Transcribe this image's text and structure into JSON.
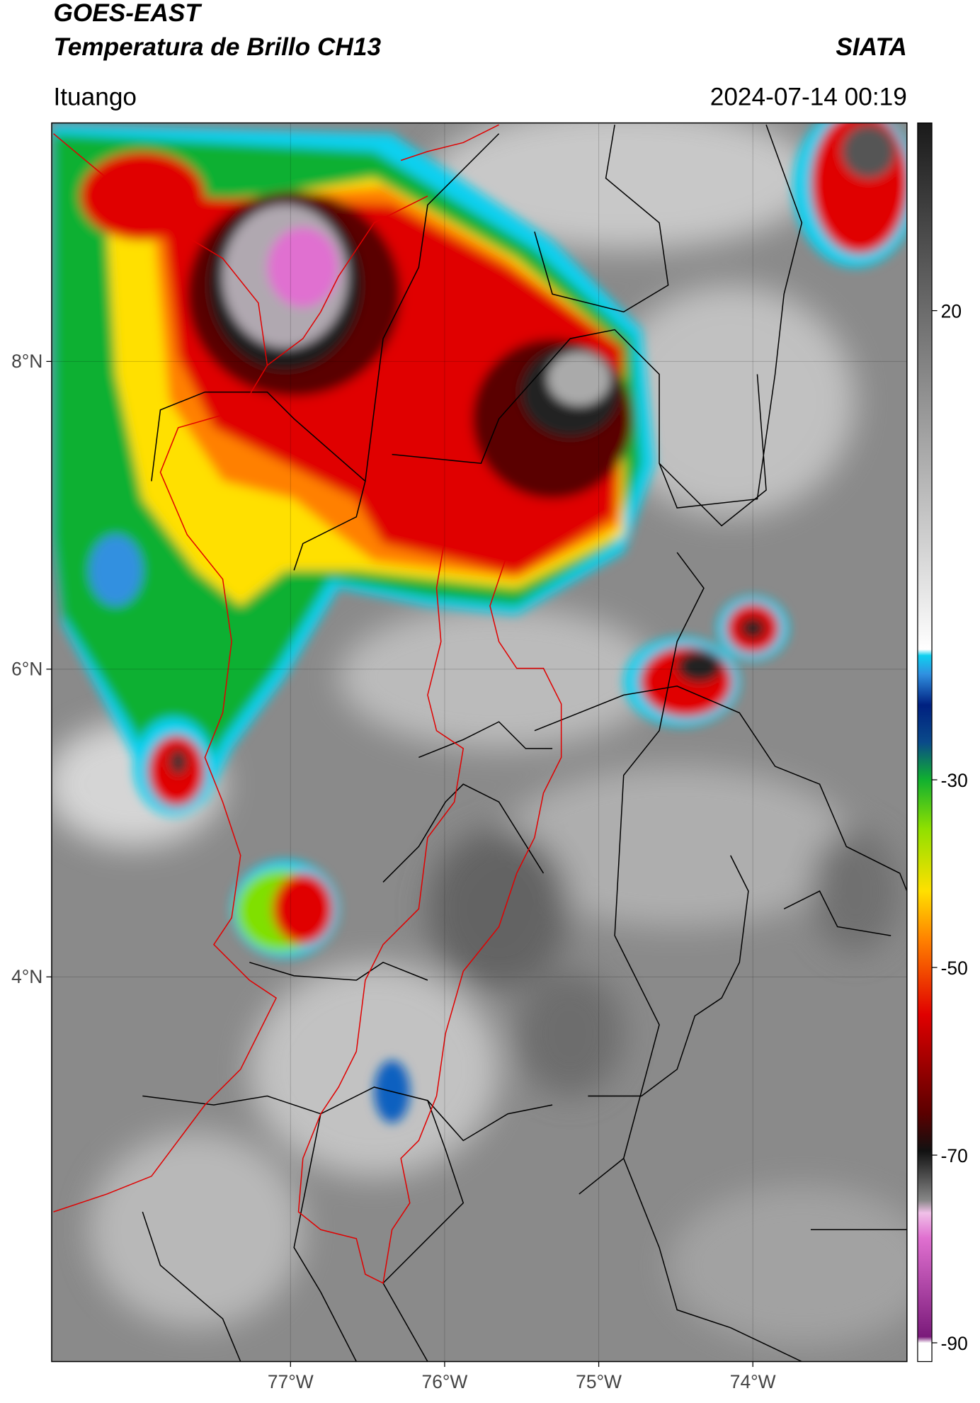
{
  "header": {
    "title": "GOES-EAST",
    "subtitle": "Temperatura de Brillo CH13",
    "brand": "SIATA",
    "location": "Ituango",
    "datetime": "2024-07-14 00:19"
  },
  "map": {
    "xlim": [
      -78.55,
      -73.0
    ],
    "ylim": [
      1.5,
      9.55
    ],
    "xticks": [
      {
        "value": -77,
        "label": "77°W"
      },
      {
        "value": -76,
        "label": "76°W"
      },
      {
        "value": -75,
        "label": "75°W"
      },
      {
        "value": -74,
        "label": "74°W"
      }
    ],
    "yticks": [
      {
        "value": 8,
        "label": "8°N"
      },
      {
        "value": 6,
        "label": "6°N"
      },
      {
        "value": 4,
        "label": "4°N"
      }
    ],
    "grid": true
  },
  "colorbar": {
    "lim": [
      -92,
      40
    ],
    "ticks": [
      20,
      -30,
      -50,
      -70,
      -90
    ]
  }
}
